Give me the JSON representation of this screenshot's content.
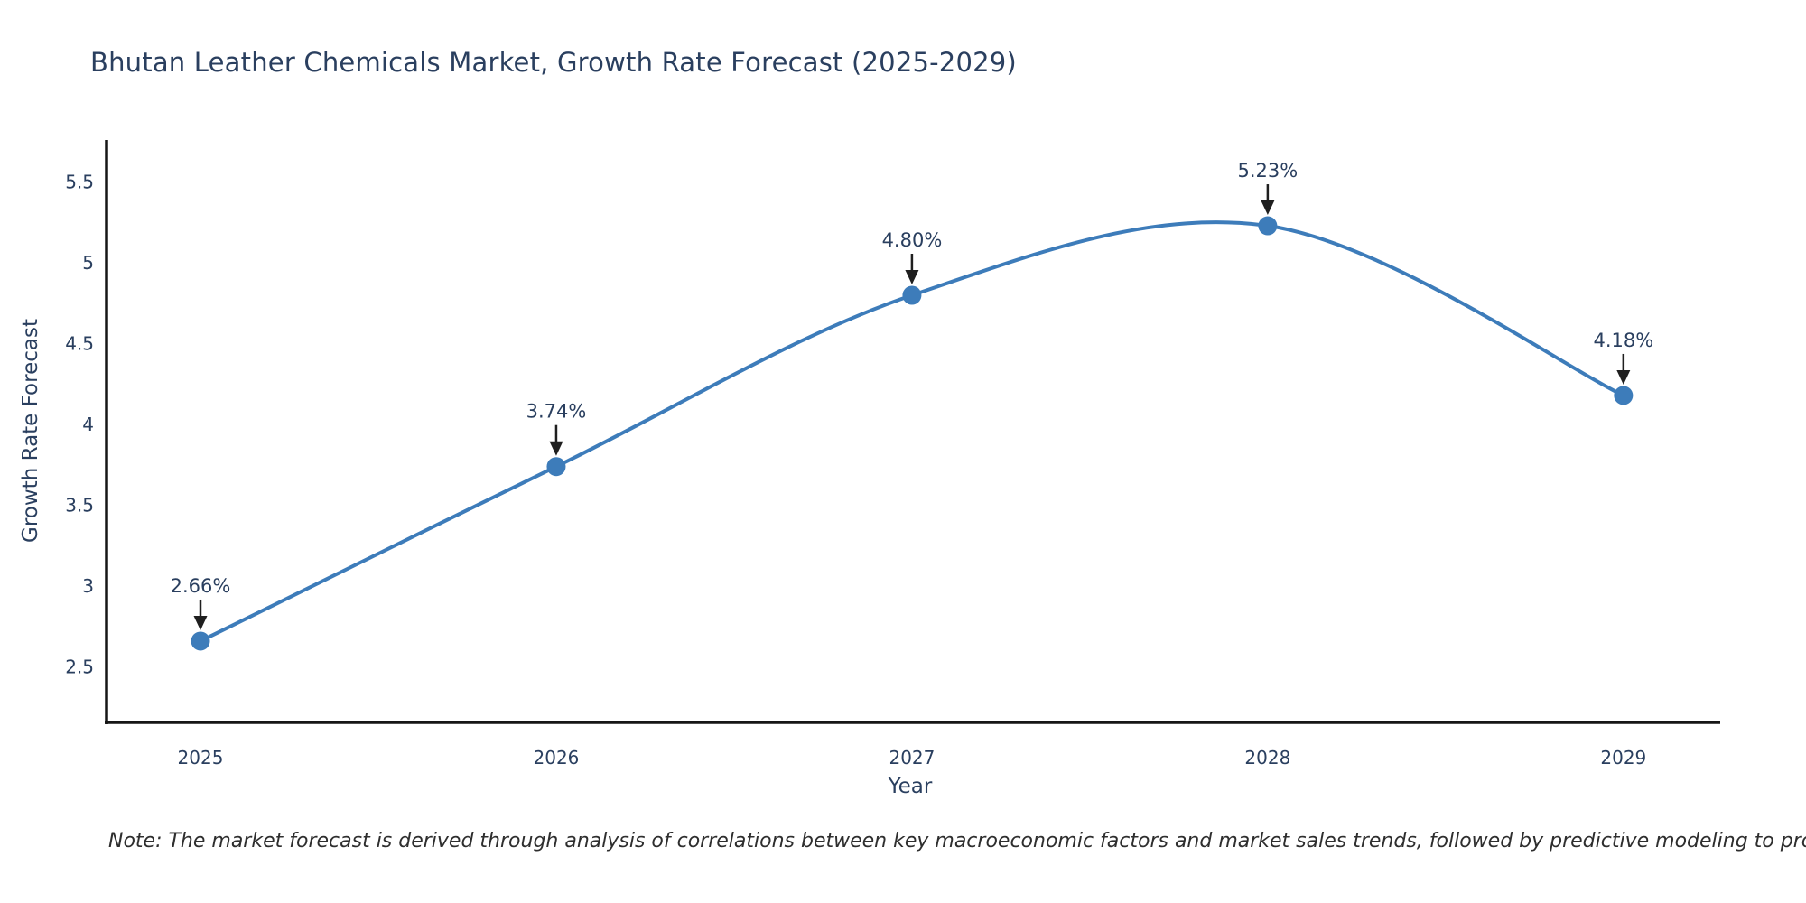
{
  "title": "Bhutan Leather Chemicals Market, Growth Rate Forecast (2025-2029)",
  "note": "Note: The market forecast is derived through analysis of correlations between key macroeconomic factors and market sales trends, followed by predictive modeling to project future sales",
  "chart_data": {
    "type": "line",
    "line_shape": "spline",
    "title": "Bhutan Leather Chemicals Market, Growth Rate Forecast (2025-2029)",
    "xlabel": "Year",
    "ylabel": "Growth Rate Forecast",
    "x": [
      2025,
      2026,
      2027,
      2028,
      2029
    ],
    "y": [
      2.66,
      3.74,
      4.8,
      5.23,
      4.18
    ],
    "point_labels": [
      "2.66%",
      "3.74%",
      "4.80%",
      "5.23%",
      "4.18%"
    ],
    "xtick_values": [
      2025,
      2026,
      2027,
      2028,
      2029
    ],
    "xtick_labels": [
      "2025",
      "2026",
      "2027",
      "2028",
      "2029"
    ],
    "ytick_values": [
      2.5,
      3,
      3.5,
      4,
      4.5,
      5,
      5.5
    ],
    "ytick_labels": [
      "2.5",
      "3",
      "3.5",
      "4",
      "4.5",
      "5",
      "5.5"
    ],
    "xlim": [
      2024.736,
      2029.272
    ],
    "ylim": [
      2.157,
      5.761
    ],
    "grid": false,
    "legend": "none",
    "colors": {
      "line": "#3d7cba",
      "marker": "#3d7cba",
      "text": "#2a3f5f",
      "axis": "#161616",
      "arrow": "#1f1f1f",
      "background": "#ffffff"
    }
  }
}
